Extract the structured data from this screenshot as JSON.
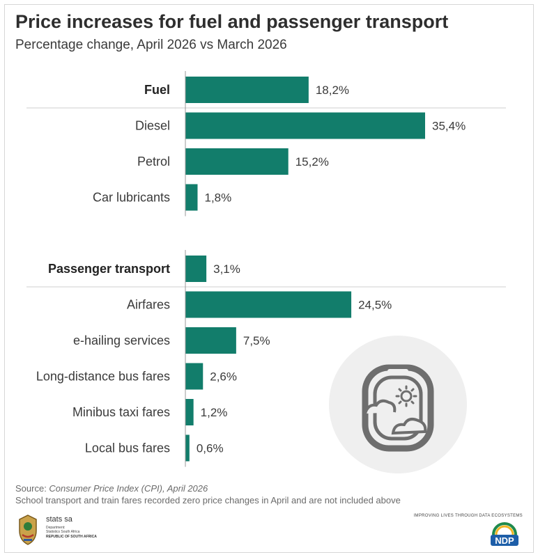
{
  "header": {
    "title": "Price increases for fuel and passenger transport",
    "subtitle": "Percentage change, April 2026 vs March 2026"
  },
  "chart_data": {
    "type": "bar",
    "orientation": "horizontal",
    "groups": [
      {
        "name": "Fuel",
        "total": {
          "label": "Fuel",
          "value": 18.2,
          "display": "18,2%"
        },
        "items": [
          {
            "label": "Diesel",
            "value": 35.4,
            "display": "35,4%"
          },
          {
            "label": "Petrol",
            "value": 15.2,
            "display": "15,2%"
          },
          {
            "label": "Car lubricants",
            "value": 1.8,
            "display": "1,8%"
          }
        ]
      },
      {
        "name": "Passenger transport",
        "total": {
          "label": "Passenger transport",
          "value": 3.1,
          "display": "3,1%"
        },
        "items": [
          {
            "label": "Airfares",
            "value": 24.5,
            "display": "24,5%"
          },
          {
            "label": "e-hailing services",
            "value": 7.5,
            "display": "7,5%"
          },
          {
            "label": "Long-distance bus fares",
            "value": 2.6,
            "display": "2,6%"
          },
          {
            "label": "Minibus taxi fares",
            "value": 1.2,
            "display": "1,2%"
          },
          {
            "label": "Local bus fares",
            "value": 0.6,
            "display": "0,6%"
          }
        ]
      }
    ],
    "xlim": [
      0,
      35.4
    ],
    "grid": false,
    "bar_color": "#127d6b"
  },
  "footer": {
    "source_prefix": "Source: ",
    "source_title": "Consumer Price Index (CPI), April 2026",
    "note": "School transport and train fares recorded zero price changes in April and are not included above",
    "brand": "stats sa",
    "dept_line1": "Department:",
    "dept_line2": "Statistics South Africa",
    "dept_line3": "REPUBLIC OF SOUTH AFRICA",
    "tagline": "IMPROVING LIVES THROUGH DATA ECOSYSTEMS",
    "ndp_label": "NDP"
  },
  "icons": {
    "illustration": "airplane-window-icon",
    "logo": "coat-of-arms-icon",
    "ndp": "ndp-logo-icon"
  }
}
